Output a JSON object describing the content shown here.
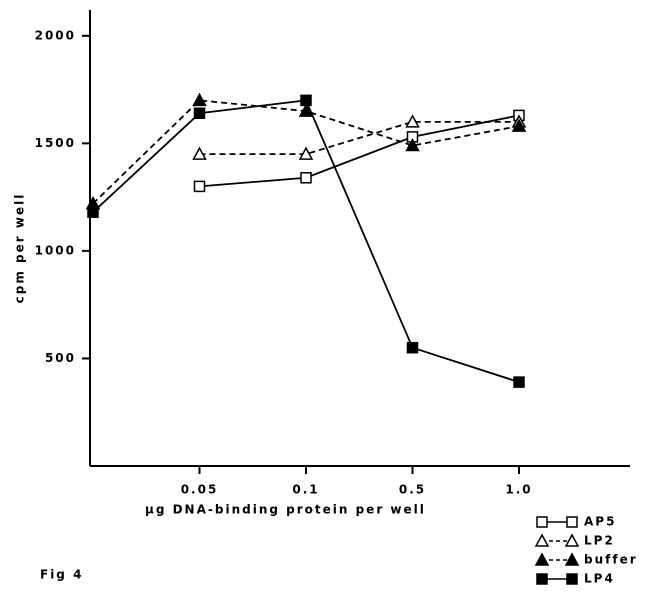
{
  "chart_data": {
    "type": "line",
    "caption": "Fig 4",
    "xlabel": "μg DNA-binding protein per well",
    "ylabel": "cpm per well",
    "categories": [
      null,
      "0.05",
      "0.1",
      "0.5",
      "1.0"
    ],
    "ylim": [
      0,
      2120
    ],
    "yticks": [
      500,
      1000,
      1500,
      2000
    ],
    "series": [
      {
        "name": "AP5",
        "color": "#000000",
        "line": "solid",
        "marker": "square",
        "filled": false,
        "values": [
          null,
          1300,
          1340,
          1530,
          1630
        ]
      },
      {
        "name": "LP2",
        "color": "#000000",
        "line": "dashed",
        "marker": "triangle",
        "filled": false,
        "values": [
          null,
          1450,
          1450,
          1600,
          1600
        ]
      },
      {
        "name": "buffer",
        "color": "#000000",
        "line": "dashed",
        "marker": "triangle",
        "filled": true,
        "values": [
          1220,
          1700,
          1650,
          1490,
          1580
        ]
      },
      {
        "name": "LP4",
        "color": "#000000",
        "line": "solid",
        "marker": "square",
        "filled": true,
        "values": [
          1180,
          1640,
          1700,
          550,
          390
        ]
      }
    ]
  }
}
